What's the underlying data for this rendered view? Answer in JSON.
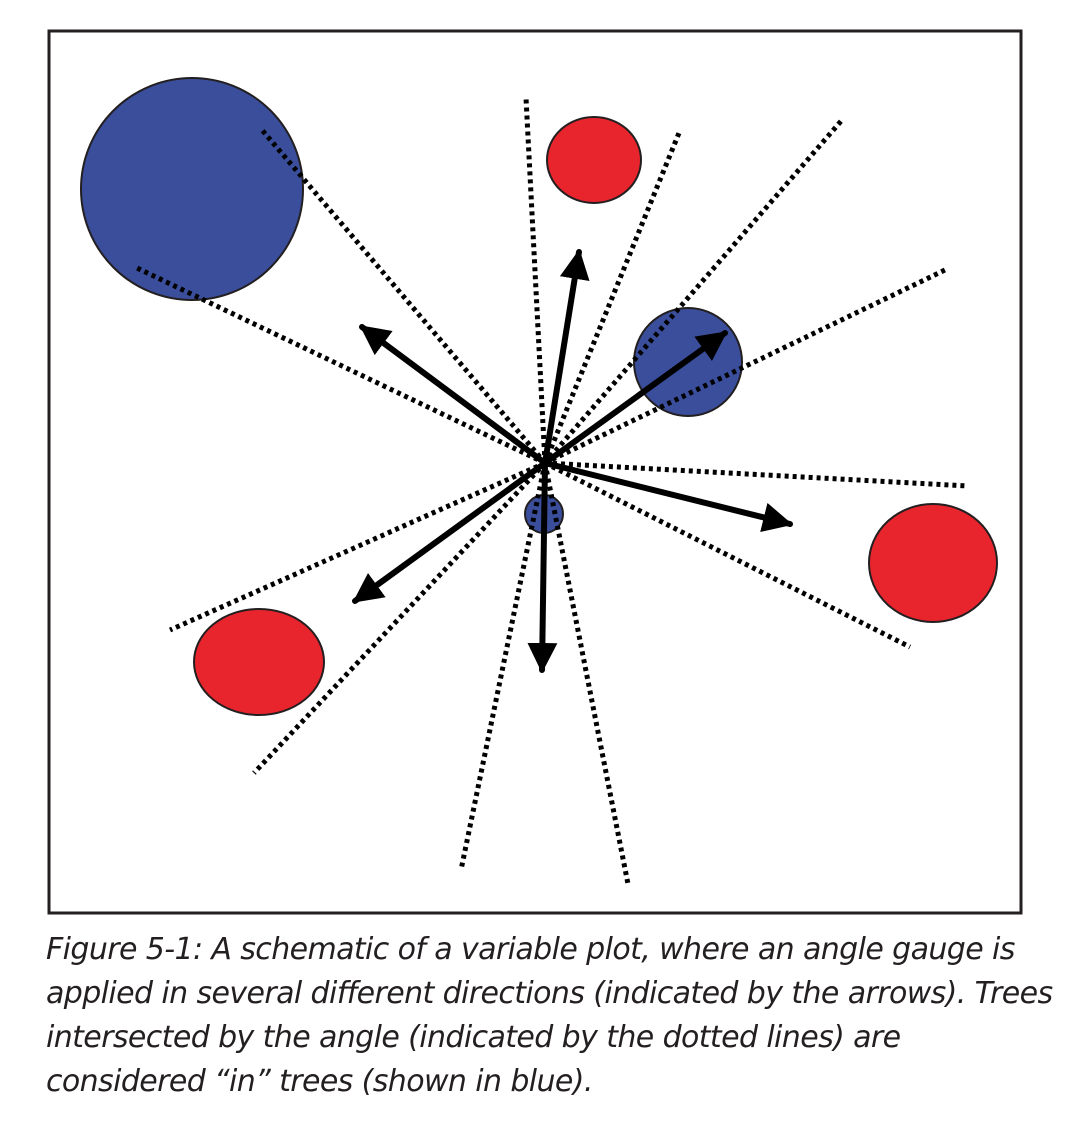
{
  "figure": {
    "caption": "Figure 5-1: A schematic of a variable plot, where an angle gauge is applied in several different directions (indicated by the arrows). Trees intersected by the angle (indicated by the dotted lines) are considered “in” trees (shown in blue).",
    "colors": {
      "in_tree": "#3a4e9c",
      "out_tree": "#e8242d",
      "outline": "#231f20",
      "line": "#000000"
    },
    "trees": [
      {
        "status": "in"
      },
      {
        "status": "out"
      },
      {
        "status": "in"
      },
      {
        "status": "in"
      },
      {
        "status": "out"
      },
      {
        "status": "out"
      }
    ],
    "gauge_directions": 6
  }
}
